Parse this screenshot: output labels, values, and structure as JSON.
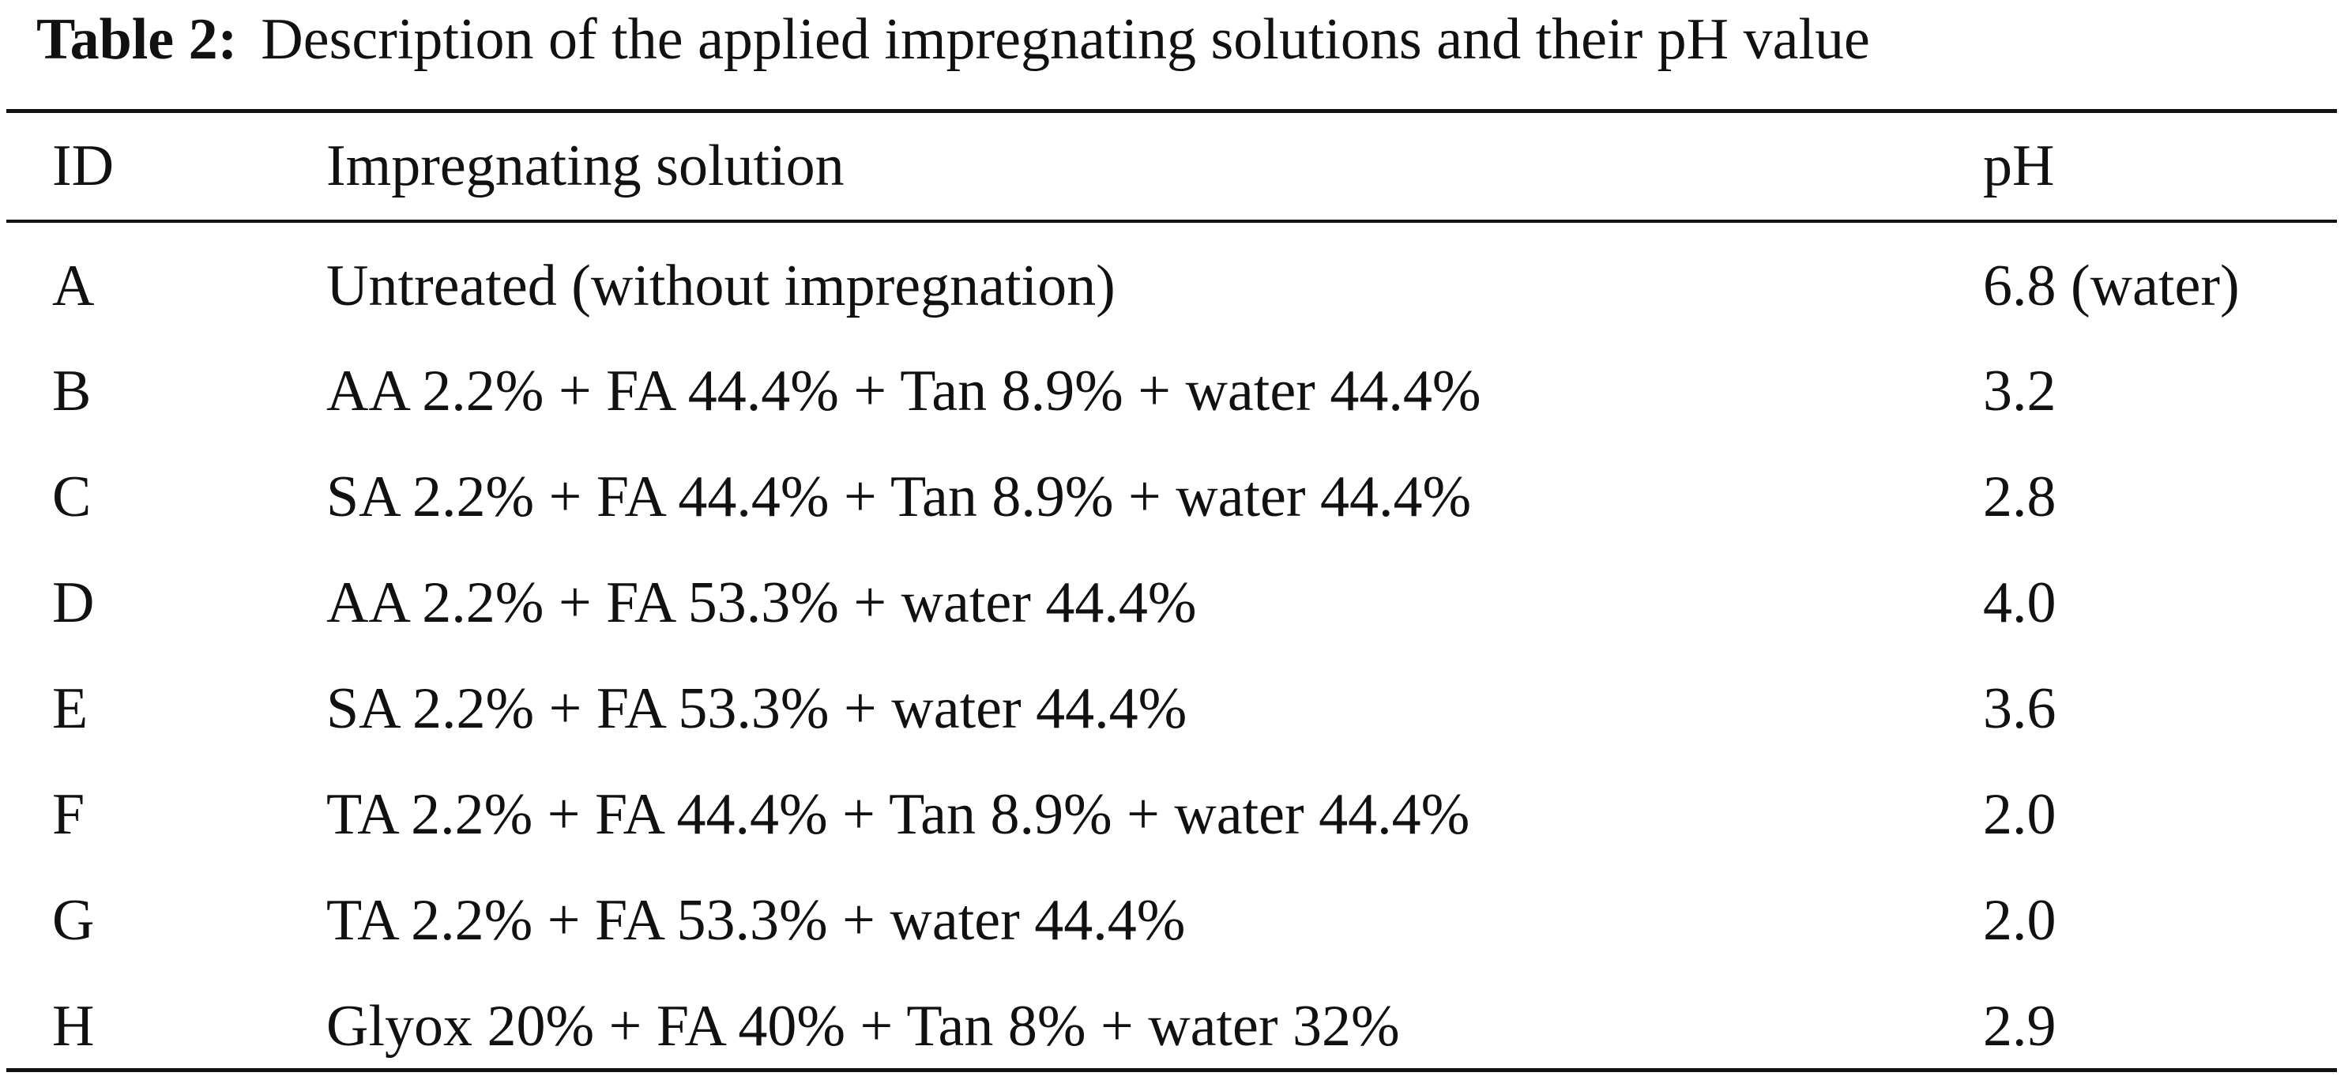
{
  "caption": {
    "label": "Table 2:",
    "text": "Description of the applied impregnating solutions and their pH value"
  },
  "table": {
    "headers": [
      "ID",
      "Impregnating solution",
      "pH"
    ],
    "rows": [
      [
        "A",
        "Untreated (without impregnation)",
        "6.8 (water)"
      ],
      [
        "B",
        "AA 2.2% + FA 44.4% + Tan 8.9% + water 44.4%",
        "3.2"
      ],
      [
        "C",
        "SA 2.2% + FA 44.4% + Tan 8.9% + water 44.4%",
        "2.8"
      ],
      [
        "D",
        "AA 2.2% + FA 53.3% + water 44.4%",
        "4.0"
      ],
      [
        "E",
        "SA 2.2% + FA 53.3% + water 44.4%",
        "3.6"
      ],
      [
        "F",
        "TA 2.2% + FA 44.4% + Tan 8.9% + water 44.4%",
        "2.0"
      ],
      [
        "G",
        "TA 2.2% + FA 53.3% + water 44.4%",
        "2.0"
      ],
      [
        "H",
        "Glyox 20% + FA 40% + Tan 8% + water 32%",
        "2.9"
      ]
    ]
  }
}
